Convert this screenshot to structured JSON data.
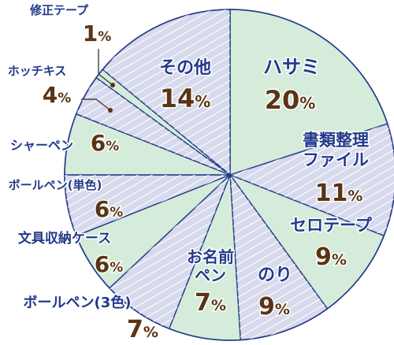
{
  "chart_data": {
    "type": "pie",
    "title": "",
    "colors": {
      "green": "#d4ecd9",
      "lavender": "#d7d9ec",
      "stripe": "#ffffff",
      "border": "#233a8a",
      "label": "#233a8a",
      "percent": "#5a3413"
    },
    "slices": [
      {
        "label": "ハサミ",
        "value": 20,
        "color": "green"
      },
      {
        "label": "書類整理ファイル",
        "value": 11,
        "color": "lavender"
      },
      {
        "label": "セロテープ",
        "value": 9,
        "color": "green"
      },
      {
        "label": "のり",
        "value": 9,
        "color": "lavender"
      },
      {
        "label": "お名前ペン",
        "value": 7,
        "color": "green"
      },
      {
        "label": "ボールペン(3色)",
        "value": 7,
        "color": "lavender"
      },
      {
        "label": "文具収納ケース",
        "value": 6,
        "color": "green"
      },
      {
        "label": "ボールペン(単色)",
        "value": 6,
        "color": "lavender"
      },
      {
        "label": "シャーペン",
        "value": 6,
        "color": "green"
      },
      {
        "label": "ホッチキス",
        "value": 4,
        "color": "lavender"
      },
      {
        "label": "修正テープ",
        "value": 1,
        "color": "green"
      },
      {
        "label": "その他",
        "value": 14,
        "color": "lavender"
      }
    ],
    "percent_suffix": "%"
  }
}
